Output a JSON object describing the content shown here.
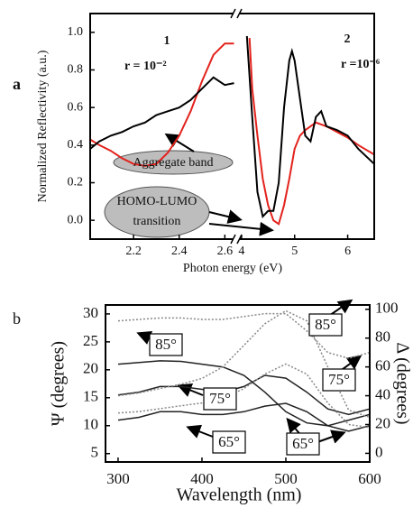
{
  "chart_data": [
    {
      "type": "line",
      "panel_label": "a",
      "ylabel": "Normalized Reflectivity (a.u.)",
      "xlabel": "Photon energy (eV)",
      "xlim": [
        2.01,
        6.5
      ],
      "axis_break": [
        2.65,
        3.9
      ],
      "xticks": [
        2.2,
        2.4,
        2.6,
        4,
        5,
        6
      ],
      "ylim": [
        -0.1,
        1.1
      ],
      "yticks": [
        {
          "value": 0,
          "label": "0.0"
        },
        0.2,
        0.4,
        0.6,
        0.8,
        {
          "value": 1,
          "label": "1.0"
        }
      ],
      "series": [
        {
          "name": "1",
          "color": "#e3221c",
          "x": [
            2.01,
            2.05,
            2.1,
            2.15,
            2.2,
            2.25,
            2.3,
            2.35,
            2.4,
            2.45,
            2.5,
            2.55,
            2.6,
            2.64,
            null,
            4.15,
            4.2,
            4.3,
            4.4,
            4.5,
            4.6,
            4.7,
            4.8,
            4.9,
            5.0,
            5.1,
            5.2,
            5.4,
            5.6,
            5.8,
            6.0,
            6.2,
            6.5
          ],
          "values": [
            0.43,
            0.4,
            0.37,
            0.33,
            0.3,
            0.29,
            0.3,
            0.36,
            0.45,
            0.58,
            0.74,
            0.88,
            0.94,
            0.94,
            null,
            0.97,
            0.7,
            0.45,
            0.22,
            0.08,
            0.0,
            -0.02,
            0.08,
            0.22,
            0.38,
            0.45,
            0.48,
            0.52,
            0.5,
            0.47,
            0.44,
            0.4,
            0.35
          ]
        },
        {
          "name": "2",
          "color": "#000000",
          "x": [
            2.01,
            2.05,
            2.1,
            2.15,
            2.2,
            2.25,
            2.3,
            2.35,
            2.4,
            2.45,
            2.5,
            2.55,
            2.6,
            2.64,
            null,
            4.1,
            4.2,
            4.3,
            4.4,
            4.5,
            4.6,
            4.7,
            4.8,
            4.9,
            4.95,
            5.0,
            5.1,
            5.2,
            5.3,
            5.4,
            5.5,
            5.6,
            5.8,
            6.0,
            6.2,
            6.5
          ],
          "values": [
            0.38,
            0.42,
            0.45,
            0.47,
            0.5,
            0.52,
            0.56,
            0.58,
            0.6,
            0.64,
            0.7,
            0.76,
            0.72,
            0.73,
            null,
            0.98,
            0.55,
            0.15,
            0.02,
            0.05,
            0.05,
            0.2,
            0.6,
            0.85,
            0.9,
            0.85,
            0.65,
            0.45,
            0.42,
            0.55,
            0.58,
            0.5,
            0.48,
            0.45,
            0.38,
            0.3
          ]
        }
      ],
      "annotations": [
        "r = 10⁻²",
        "r =10⁻⁶",
        "Aggregate band",
        "HOMO-LUMO",
        "transition"
      ]
    },
    {
      "type": "line",
      "panel_label": "b",
      "ylabel": "Ψ (degrees)",
      "y2label": "Δ (degrees)",
      "xlabel": "Wavelength (nm)",
      "xlim": [
        285,
        600
      ],
      "xticks": [
        300,
        400,
        500,
        600
      ],
      "ylim": [
        3.5,
        31.6
      ],
      "yticks": [
        5,
        10,
        15,
        20,
        25,
        30
      ],
      "y2lim": [
        -6,
        103
      ],
      "y2ticks": [
        0,
        20,
        40,
        60,
        80,
        100
      ],
      "series": [
        {
          "name": "85°",
          "color": "#222222",
          "x": [
            300,
            325,
            350,
            375,
            400,
            425,
            450,
            475,
            500,
            525,
            550,
            575,
            600
          ],
          "values": [
            21,
            21.3,
            21.6,
            21.5,
            21,
            20.5,
            19,
            16,
            12.5,
            10.5,
            10,
            11,
            12
          ]
        },
        {
          "name": "75°",
          "color": "#222222",
          "x": [
            300,
            325,
            350,
            375,
            400,
            425,
            450,
            475,
            500,
            525,
            550,
            575,
            600
          ],
          "values": [
            15.5,
            16,
            17,
            17,
            16.5,
            16,
            17,
            19,
            18.5,
            16,
            13,
            12,
            13
          ]
        },
        {
          "name": "65°",
          "color": "#222222",
          "x": [
            300,
            325,
            350,
            375,
            400,
            425,
            450,
            475,
            500,
            525,
            550,
            575,
            600
          ],
          "values": [
            11,
            11.5,
            12.5,
            12.5,
            12,
            12,
            12.5,
            13.5,
            14,
            12.5,
            10,
            9,
            10
          ]
        },
        {
          "name": "85°",
          "color": "#888888",
          "axis": "y2",
          "x": [
            300,
            325,
            350,
            375,
            400,
            425,
            450,
            475,
            500,
            525,
            550,
            575,
            600
          ],
          "values": [
            92,
            93,
            94,
            94,
            93,
            93,
            95,
            97,
            97,
            85,
            70,
            66,
            70
          ]
        },
        {
          "name": "75°",
          "color": "#888888",
          "axis": "y2",
          "x": [
            300,
            325,
            350,
            375,
            400,
            425,
            450,
            475,
            500,
            525,
            550,
            575,
            600
          ],
          "values": [
            40,
            42,
            45,
            48,
            52,
            60,
            75,
            90,
            99,
            92,
            60,
            30,
            25
          ]
        },
        {
          "name": "65°",
          "color": "#888888",
          "axis": "y2",
          "x": [
            300,
            325,
            350,
            375,
            400,
            425,
            450,
            475,
            500,
            525,
            550,
            575,
            600
          ],
          "values": [
            28,
            29,
            31,
            33,
            35,
            38,
            45,
            55,
            62,
            55,
            35,
            20,
            18
          ]
        }
      ]
    }
  ]
}
